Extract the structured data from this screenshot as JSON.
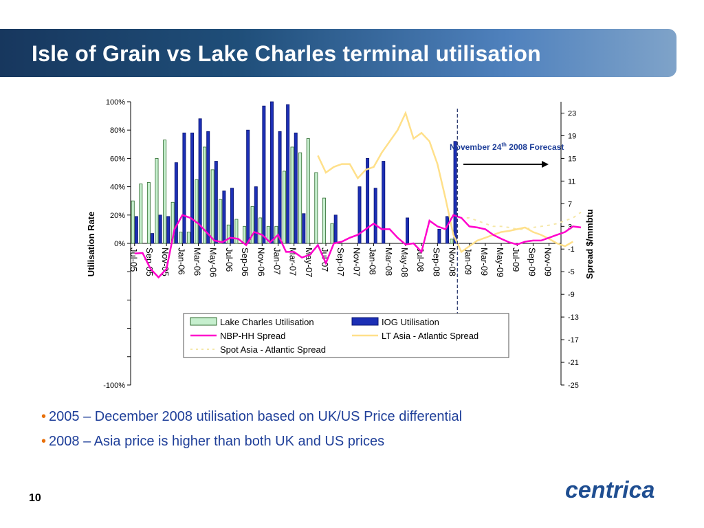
{
  "slide": {
    "title": "Isle of Grain vs Lake Charles terminal utilisation",
    "bullets": [
      "2005 – December 2008 utilisation based on UK/US Price differential",
      "2008 – Asia price is higher than both UK and US prices"
    ],
    "page_number": "10",
    "logo_text": "centrica",
    "colors": {
      "title_bar": "#1f4e79",
      "bullet_text": "#1f3f99",
      "bullet_dot": "#e8700a",
      "logo": "#1f4e91"
    }
  },
  "chart_data": {
    "type": "bar",
    "ylabel_left": "Utilisation Rate",
    "ylabel_right": "Spread $/mmbtu",
    "left_ticks": [
      "100%",
      "80%",
      "60%",
      "40%",
      "20%",
      "0%",
      "",
      "",
      "",
      "",
      "-100%"
    ],
    "right_ticks": [
      "23",
      "19",
      "15",
      "11",
      "7",
      "3",
      "-1",
      "-5",
      "-9",
      "-13",
      "-17",
      "-21",
      "-25"
    ],
    "ylim_left": [
      -1.0,
      1.0
    ],
    "ylim_right": [
      -25,
      25
    ],
    "x_tick_labels": [
      "Jul-05",
      "Sep-05",
      "Nov-05",
      "Jan-06",
      "Mar-06",
      "May-06",
      "Jul-06",
      "Sep-06",
      "Nov-06",
      "Jan-07",
      "Mar-07",
      "May-07",
      "Jul-07",
      "Sep-07",
      "Nov-07",
      "Jan-08",
      "Mar-08",
      "May-08",
      "Jul-08",
      "Sep-08",
      "Nov-08",
      "Jan-09",
      "Mar-09",
      "May-09",
      "Jul-09",
      "Sep-09",
      "Nov-09"
    ],
    "annotation": {
      "text_main": "November 24",
      "text_sup": "th",
      "text_end": " 2008 Forecast",
      "month_index": 40.5
    },
    "legend": [
      {
        "name": "Lake Charles Utilisation",
        "kind": "bar",
        "color": "#c6efce",
        "stroke": "#2e6b2e"
      },
      {
        "name": "IOG Utilisation",
        "kind": "bar",
        "color": "#1c2fb5",
        "stroke": "#0a1470"
      },
      {
        "name": "NBP-HH Spread",
        "kind": "line",
        "color": "#ff00cc"
      },
      {
        "name": "LT Asia - Atlantic Spread",
        "kind": "line",
        "color": "#ffe08a"
      },
      {
        "name": "Spot Asia - Atlantic Spread",
        "kind": "dash",
        "color": "#f5e7a8"
      }
    ],
    "series_lake_charles": [
      0.3,
      0.42,
      0.43,
      0.6,
      0.73,
      0.29,
      0.08,
      0.08,
      0.45,
      0.68,
      0.52,
      0.31,
      0.13,
      0.17,
      0.12,
      0.26,
      0.18,
      0.12,
      0.12,
      0.51,
      0.68,
      0.64,
      0.74,
      0.5,
      0.32,
      0.14,
      0,
      0,
      0,
      0,
      0,
      0,
      0,
      0,
      0,
      0,
      0,
      0,
      0,
      0,
      0.03
    ],
    "series_iog": [
      0.19,
      0,
      0.07,
      0.2,
      0.19,
      0.57,
      0.78,
      0.78,
      0.88,
      0.79,
      0.58,
      0.37,
      0.39,
      0,
      0.8,
      0.4,
      0.97,
      1.0,
      0.79,
      0.98,
      0.78,
      0.21,
      0,
      0,
      0,
      0.2,
      0,
      0,
      0.4,
      0.6,
      0.39,
      0.58,
      0,
      0,
      0.18,
      0,
      0,
      0,
      0.1,
      0.19,
      0.72
    ],
    "series_nbp_hh": [
      -1.8,
      -1.7,
      -4.5,
      -6.0,
      -4.5,
      2.5,
      5.0,
      4.5,
      3.5,
      2.0,
      0.5,
      0.2,
      1.0,
      0.8,
      -0.3,
      2.0,
      1.5,
      0.2,
      1.5,
      -1.5,
      -1.5,
      -2.5,
      -2.0,
      -0.3,
      -3.5,
      0,
      0.3,
      1.0,
      1.5,
      2.5,
      3.5,
      2.5,
      2.5,
      1.0,
      -0.2,
      0,
      -1.5,
      4.0,
      3.0,
      2.5,
      5.0,
      4.5,
      3.0,
      2.8,
      2.5,
      1.5,
      0.8,
      0.2,
      -0.2,
      0.3,
      0.5,
      0.5,
      1.0,
      1.5,
      2.0,
      3.0,
      2.8
    ],
    "lt_start_index": 23,
    "series_lt_asia": [
      15.5,
      12.5,
      13.5,
      14.0,
      14.0,
      11.5,
      13.0,
      13.5,
      16.0,
      18.0,
      20.0,
      23.0,
      18.5,
      19.5,
      18.0,
      14.0,
      8.0,
      1.5,
      -1.5,
      -0.5,
      0.5,
      1.0,
      1.5,
      2.0,
      2.2,
      2.5,
      2.8,
      2.0,
      1.5,
      0.8,
      0,
      -0.5,
      0.3
    ],
    "spot_start_index": 40,
    "series_spot_asia": [
      5.0,
      4.5,
      4.5,
      4.0,
      3.5,
      3.0,
      3.0,
      2.8,
      2.5,
      2.5,
      2.8,
      3.0,
      3.2,
      3.5,
      4.0,
      4.5,
      5.5
    ]
  }
}
